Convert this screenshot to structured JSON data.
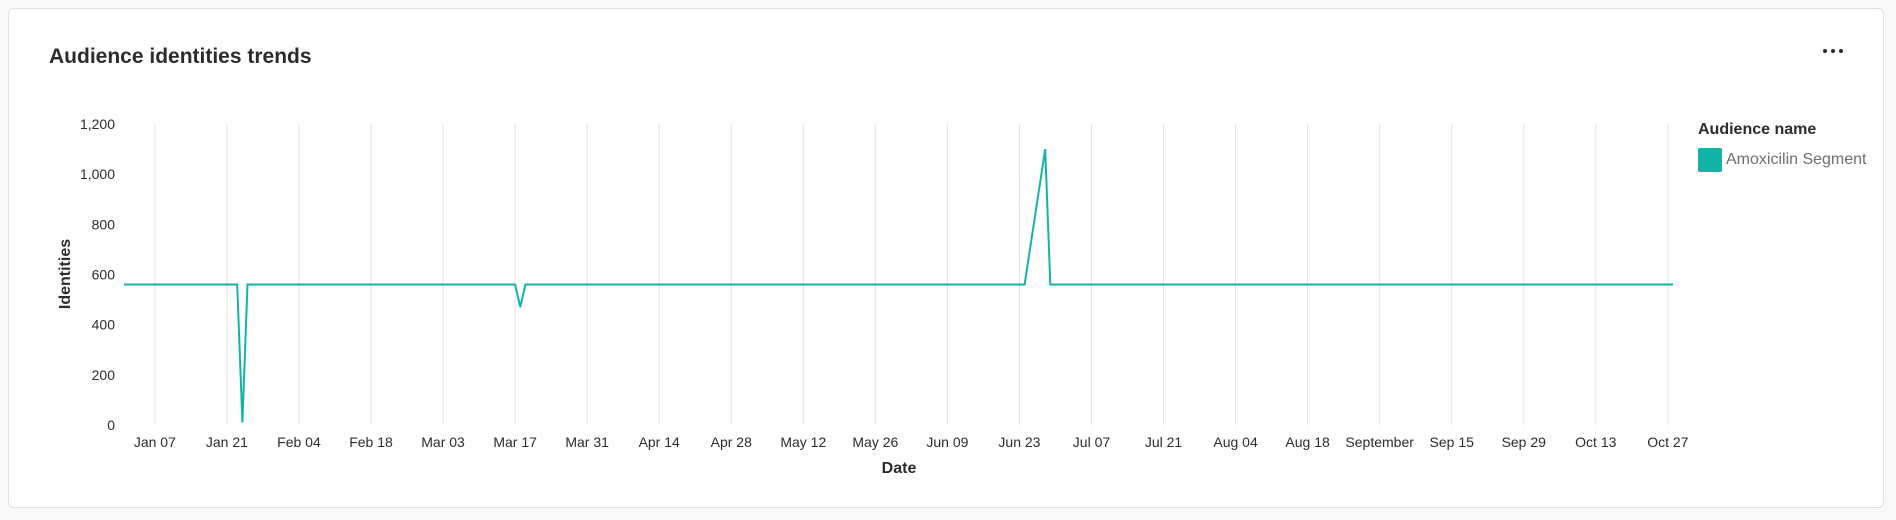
{
  "card": {
    "title": "Audience identities trends",
    "more_icon": "ellipsis-icon"
  },
  "legend": {
    "title": "Audience name",
    "items": [
      {
        "label": "Amoxicilin Segment",
        "color": "#14b3a7"
      }
    ]
  },
  "chart_data": {
    "type": "line",
    "title": "Audience identities trends",
    "xlabel": "Date",
    "ylabel": "Identities",
    "ylim": [
      0,
      1200
    ],
    "y_ticks": [
      "0",
      "200",
      "400",
      "600",
      "800",
      "1,000",
      "1,200"
    ],
    "y_tick_values": [
      0,
      200,
      400,
      600,
      800,
      1000,
      1200
    ],
    "x_ticks": [
      "Jan 07",
      "Jan 21",
      "Feb 04",
      "Feb 18",
      "Mar 03",
      "Mar 17",
      "Mar 31",
      "Apr 14",
      "Apr 28",
      "May 12",
      "May 26",
      "Jun 09",
      "Jun 23",
      "Jul 07",
      "Jul 21",
      "Aug 04",
      "Aug 18",
      "September",
      "Sep 15",
      "Sep 29",
      "Oct 13",
      "Oct 27"
    ],
    "x_tick_dates": [
      "2024-01-07",
      "2024-01-21",
      "2024-02-04",
      "2024-02-18",
      "2024-03-03",
      "2024-03-17",
      "2024-03-31",
      "2024-04-14",
      "2024-04-28",
      "2024-05-12",
      "2024-05-26",
      "2024-06-09",
      "2024-06-23",
      "2024-07-07",
      "2024-07-21",
      "2024-08-04",
      "2024-08-18",
      "2024-09-01",
      "2024-09-15",
      "2024-09-29",
      "2024-10-13",
      "2024-10-27"
    ],
    "xlim": [
      "2024-01-01",
      "2024-10-28"
    ],
    "grid": {
      "vertical": true,
      "horizontal": false
    },
    "legend_position": "right",
    "series": [
      {
        "name": "Amoxicilin Segment",
        "color": "#14b3a7",
        "points": [
          {
            "x": "2024-01-01",
            "y": 560
          },
          {
            "x": "2024-01-23",
            "y": 560
          },
          {
            "x": "2024-01-24",
            "y": 10
          },
          {
            "x": "2024-01-25",
            "y": 560
          },
          {
            "x": "2024-03-17",
            "y": 560
          },
          {
            "x": "2024-03-18",
            "y": 470
          },
          {
            "x": "2024-03-19",
            "y": 560
          },
          {
            "x": "2024-06-24",
            "y": 560
          },
          {
            "x": "2024-06-28",
            "y": 1100
          },
          {
            "x": "2024-06-29",
            "y": 560
          },
          {
            "x": "2024-10-28",
            "y": 560
          }
        ]
      }
    ]
  }
}
